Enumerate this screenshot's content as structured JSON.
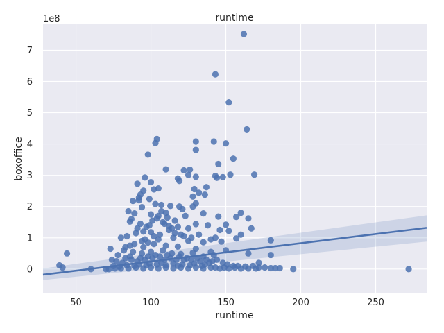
{
  "chart_data": {
    "type": "scatter",
    "title": "runtime",
    "xlabel": "runtime",
    "ylabel": "boxoffice",
    "y_offset_label": "1e8",
    "xlim": [
      28,
      284
    ],
    "ylim": [
      -0.78,
      7.83
    ],
    "xticks": [
      50,
      100,
      150,
      200,
      250
    ],
    "yticks": [
      0,
      1,
      2,
      3,
      4,
      5,
      6,
      7
    ],
    "grid": true,
    "colors": {
      "background": "#eaeaf2",
      "grid": "#ffffff",
      "points": "#4c72b0",
      "line": "#4c72b0",
      "band": "#4c72b0"
    },
    "regression": {
      "x": [
        28,
        284
      ],
      "y": [
        -0.18,
        1.32
      ],
      "ci_lower": [
        -0.35,
        0.88
      ],
      "ci_upper": [
        0.02,
        1.72
      ]
    },
    "points": [
      [
        162,
        7.52
      ],
      [
        143,
        6.23
      ],
      [
        152,
        5.33
      ],
      [
        164,
        4.47
      ],
      [
        104,
        4.16
      ],
      [
        103,
        4.03
      ],
      [
        130,
        4.08
      ],
      [
        142,
        4.08
      ],
      [
        150,
        4.02
      ],
      [
        130,
        3.81
      ],
      [
        98,
        3.66
      ],
      [
        155,
        3.53
      ],
      [
        145,
        3.36
      ],
      [
        110,
        3.19
      ],
      [
        122,
        3.16
      ],
      [
        126,
        3.18
      ],
      [
        169,
        3.02
      ],
      [
        153,
        3.02
      ],
      [
        125,
        3.01
      ],
      [
        143,
        2.98
      ],
      [
        148,
        2.94
      ],
      [
        96,
        2.93
      ],
      [
        130,
        2.95
      ],
      [
        118,
        2.9
      ],
      [
        144,
        2.92
      ],
      [
        119,
        2.82
      ],
      [
        100,
        2.78
      ],
      [
        91,
        2.73
      ],
      [
        105,
        2.58
      ],
      [
        102,
        2.55
      ],
      [
        129,
        2.56
      ],
      [
        137,
        2.62
      ],
      [
        95,
        2.51
      ],
      [
        132,
        2.44
      ],
      [
        93,
        2.38
      ],
      [
        92,
        2.28
      ],
      [
        128,
        2.32
      ],
      [
        136,
        2.38
      ],
      [
        99,
        2.24
      ],
      [
        92,
        2.2
      ],
      [
        88,
        2.18
      ],
      [
        130,
        2.1
      ],
      [
        107,
        2.05
      ],
      [
        103,
        2.08
      ],
      [
        113,
        2.02
      ],
      [
        119,
        2.0
      ],
      [
        121,
        1.92
      ],
      [
        94,
        1.98
      ],
      [
        128,
        2.0
      ],
      [
        85,
        1.85
      ],
      [
        89,
        1.78
      ],
      [
        100,
        1.75
      ],
      [
        110,
        1.8
      ],
      [
        135,
        1.78
      ],
      [
        145,
        1.68
      ],
      [
        160,
        1.8
      ],
      [
        157,
        1.67
      ],
      [
        165,
        1.62
      ],
      [
        123,
        1.7
      ],
      [
        87,
        1.6
      ],
      [
        116,
        1.55
      ],
      [
        130,
        1.44
      ],
      [
        138,
        1.4
      ],
      [
        150,
        1.42
      ],
      [
        167,
        1.3
      ],
      [
        125,
        1.3
      ],
      [
        86,
        1.52
      ],
      [
        104,
        1.62
      ],
      [
        108,
        1.5
      ],
      [
        93,
        1.45
      ],
      [
        97,
        1.35
      ],
      [
        112,
        1.38
      ],
      [
        146,
        1.25
      ],
      [
        152,
        1.22
      ],
      [
        160,
        1.1
      ],
      [
        157,
        0.98
      ],
      [
        180,
        0.92
      ],
      [
        143,
        1.0
      ],
      [
        147,
        0.88
      ],
      [
        140,
        0.95
      ],
      [
        135,
        0.86
      ],
      [
        120,
        1.1
      ],
      [
        95,
        1.2
      ],
      [
        100,
        1.18
      ],
      [
        84,
        1.05
      ],
      [
        80,
        1.0
      ],
      [
        90,
        1.15
      ],
      [
        105,
        0.95
      ],
      [
        115,
        1.0
      ],
      [
        125,
        0.9
      ],
      [
        73,
        0.65
      ],
      [
        82,
        0.6
      ],
      [
        88,
        0.55
      ],
      [
        95,
        0.7
      ],
      [
        102,
        0.8
      ],
      [
        110,
        0.75
      ],
      [
        118,
        0.72
      ],
      [
        130,
        0.65
      ],
      [
        140,
        0.55
      ],
      [
        150,
        0.6
      ],
      [
        165,
        0.5
      ],
      [
        180,
        0.45
      ],
      [
        78,
        0.45
      ],
      [
        86,
        0.4
      ],
      [
        94,
        0.5
      ],
      [
        100,
        0.55
      ],
      [
        108,
        0.6
      ],
      [
        114,
        0.5
      ],
      [
        120,
        0.48
      ],
      [
        128,
        0.52
      ],
      [
        135,
        0.4
      ],
      [
        142,
        0.45
      ],
      [
        44,
        0.5
      ],
      [
        39,
        0.12
      ],
      [
        41,
        0.05
      ],
      [
        60,
        0.0
      ],
      [
        70,
        0.0
      ],
      [
        74,
        0.3
      ],
      [
        77,
        0.25
      ],
      [
        81,
        0.2
      ],
      [
        83,
        0.35
      ],
      [
        87,
        0.3
      ],
      [
        91,
        0.25
      ],
      [
        93,
        0.35
      ],
      [
        96,
        0.3
      ],
      [
        98,
        0.4
      ],
      [
        101,
        0.35
      ],
      [
        103,
        0.45
      ],
      [
        106,
        0.4
      ],
      [
        109,
        0.3
      ],
      [
        111,
        0.45
      ],
      [
        113,
        0.35
      ],
      [
        117,
        0.3
      ],
      [
        119,
        0.4
      ],
      [
        122,
        0.3
      ],
      [
        124,
        0.35
      ],
      [
        127,
        0.3
      ],
      [
        131,
        0.35
      ],
      [
        133,
        0.25
      ],
      [
        137,
        0.3
      ],
      [
        139,
        0.2
      ],
      [
        141,
        0.25
      ],
      [
        144,
        0.3
      ],
      [
        148,
        0.2
      ],
      [
        151,
        0.15
      ],
      [
        155,
        0.1
      ],
      [
        158,
        0.1
      ],
      [
        163,
        0.08
      ],
      [
        168,
        0.1
      ],
      [
        172,
        0.2
      ],
      [
        172,
        0.05
      ],
      [
        176,
        0.05
      ],
      [
        180,
        0.03
      ],
      [
        183,
        0.03
      ],
      [
        186,
        0.03
      ],
      [
        195,
        0.0
      ],
      [
        272,
        0.0
      ],
      [
        75,
        0.1
      ],
      [
        79,
        0.08
      ],
      [
        84,
        0.12
      ],
      [
        89,
        0.1
      ],
      [
        92,
        0.15
      ],
      [
        97,
        0.12
      ],
      [
        99,
        0.18
      ],
      [
        104,
        0.15
      ],
      [
        107,
        0.2
      ],
      [
        110,
        0.12
      ],
      [
        115,
        0.18
      ],
      [
        118,
        0.1
      ],
      [
        121,
        0.15
      ],
      [
        126,
        0.12
      ],
      [
        129,
        0.18
      ],
      [
        134,
        0.1
      ],
      [
        136,
        0.15
      ],
      [
        143,
        0.05
      ],
      [
        146,
        0.02
      ],
      [
        149,
        0.05
      ],
      [
        152,
        0.02
      ],
      [
        156,
        0.05
      ],
      [
        160,
        0.02
      ],
      [
        165,
        0.02
      ],
      [
        170,
        0.02
      ],
      [
        90,
        0.05
      ],
      [
        95,
        0.02
      ],
      [
        100,
        0.05
      ],
      [
        105,
        0.02
      ],
      [
        110,
        0.05
      ],
      [
        115,
        0.02
      ],
      [
        120,
        0.05
      ],
      [
        125,
        0.02
      ],
      [
        130,
        0.05
      ],
      [
        135,
        0.02
      ],
      [
        140,
        0.05
      ],
      [
        85,
        0.02
      ],
      [
        80,
        0.02
      ],
      [
        76,
        0.02
      ],
      [
        72,
        0.0
      ],
      [
        98,
        0.85
      ],
      [
        96,
        0.95
      ],
      [
        102,
        1.05
      ],
      [
        106,
        1.1
      ],
      [
        112,
        1.25
      ],
      [
        116,
        1.15
      ],
      [
        122,
        1.05
      ],
      [
        127,
        1.0
      ],
      [
        132,
        1.1
      ],
      [
        109,
        1.45
      ],
      [
        114,
        1.3
      ],
      [
        118,
        1.35
      ],
      [
        99,
        1.4
      ],
      [
        91,
        1.3
      ],
      [
        94,
        0.9
      ],
      [
        89,
        0.8
      ],
      [
        86,
        0.75
      ],
      [
        83,
        0.7
      ],
      [
        105,
        1.7
      ],
      [
        111,
        1.65
      ],
      [
        107,
        1.85
      ],
      [
        101,
        1.55
      ]
    ]
  }
}
